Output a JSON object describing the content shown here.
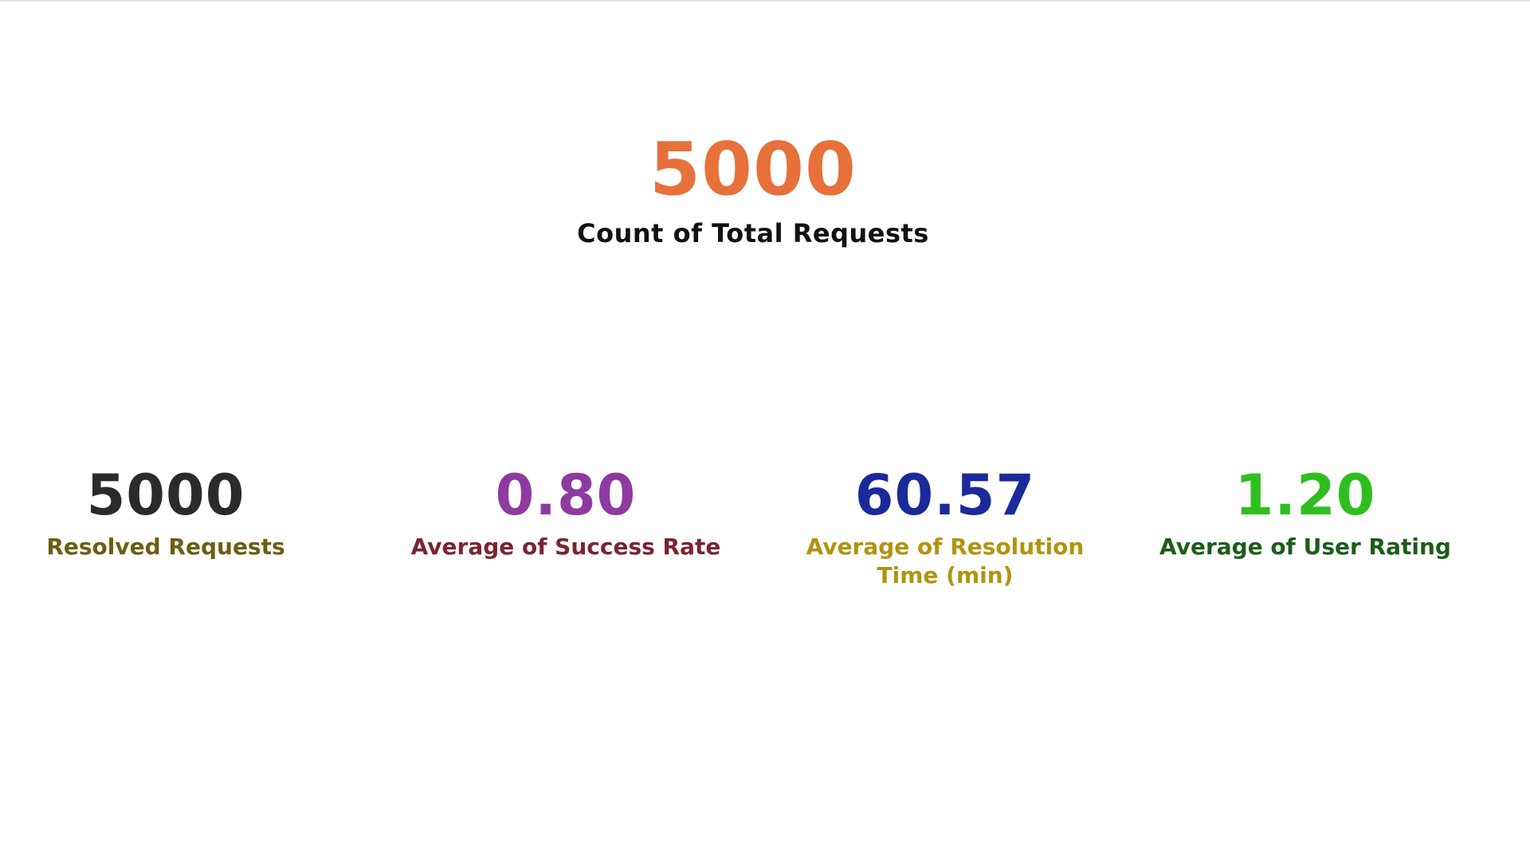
{
  "hero": {
    "value": "5000",
    "label": "Count of Total Requests",
    "value_color": "#e8703a",
    "label_color": "#111111"
  },
  "cards": [
    {
      "value": "5000",
      "label": "Resolved Requests",
      "value_color": "#2b2b2b",
      "label_color": "#6e5d10"
    },
    {
      "value": "0.80",
      "label": "Average of Success Rate",
      "value_color": "#8e3aa0",
      "label_color": "#7a2430"
    },
    {
      "value": "60.57",
      "label": "Average of Resolution Time (min)",
      "value_color": "#1a2a9a",
      "label_color": "#b0940f"
    },
    {
      "value": "1.20",
      "label": "Average of User Rating",
      "value_color": "#2fbe1f",
      "label_color": "#1d5c1a"
    }
  ]
}
